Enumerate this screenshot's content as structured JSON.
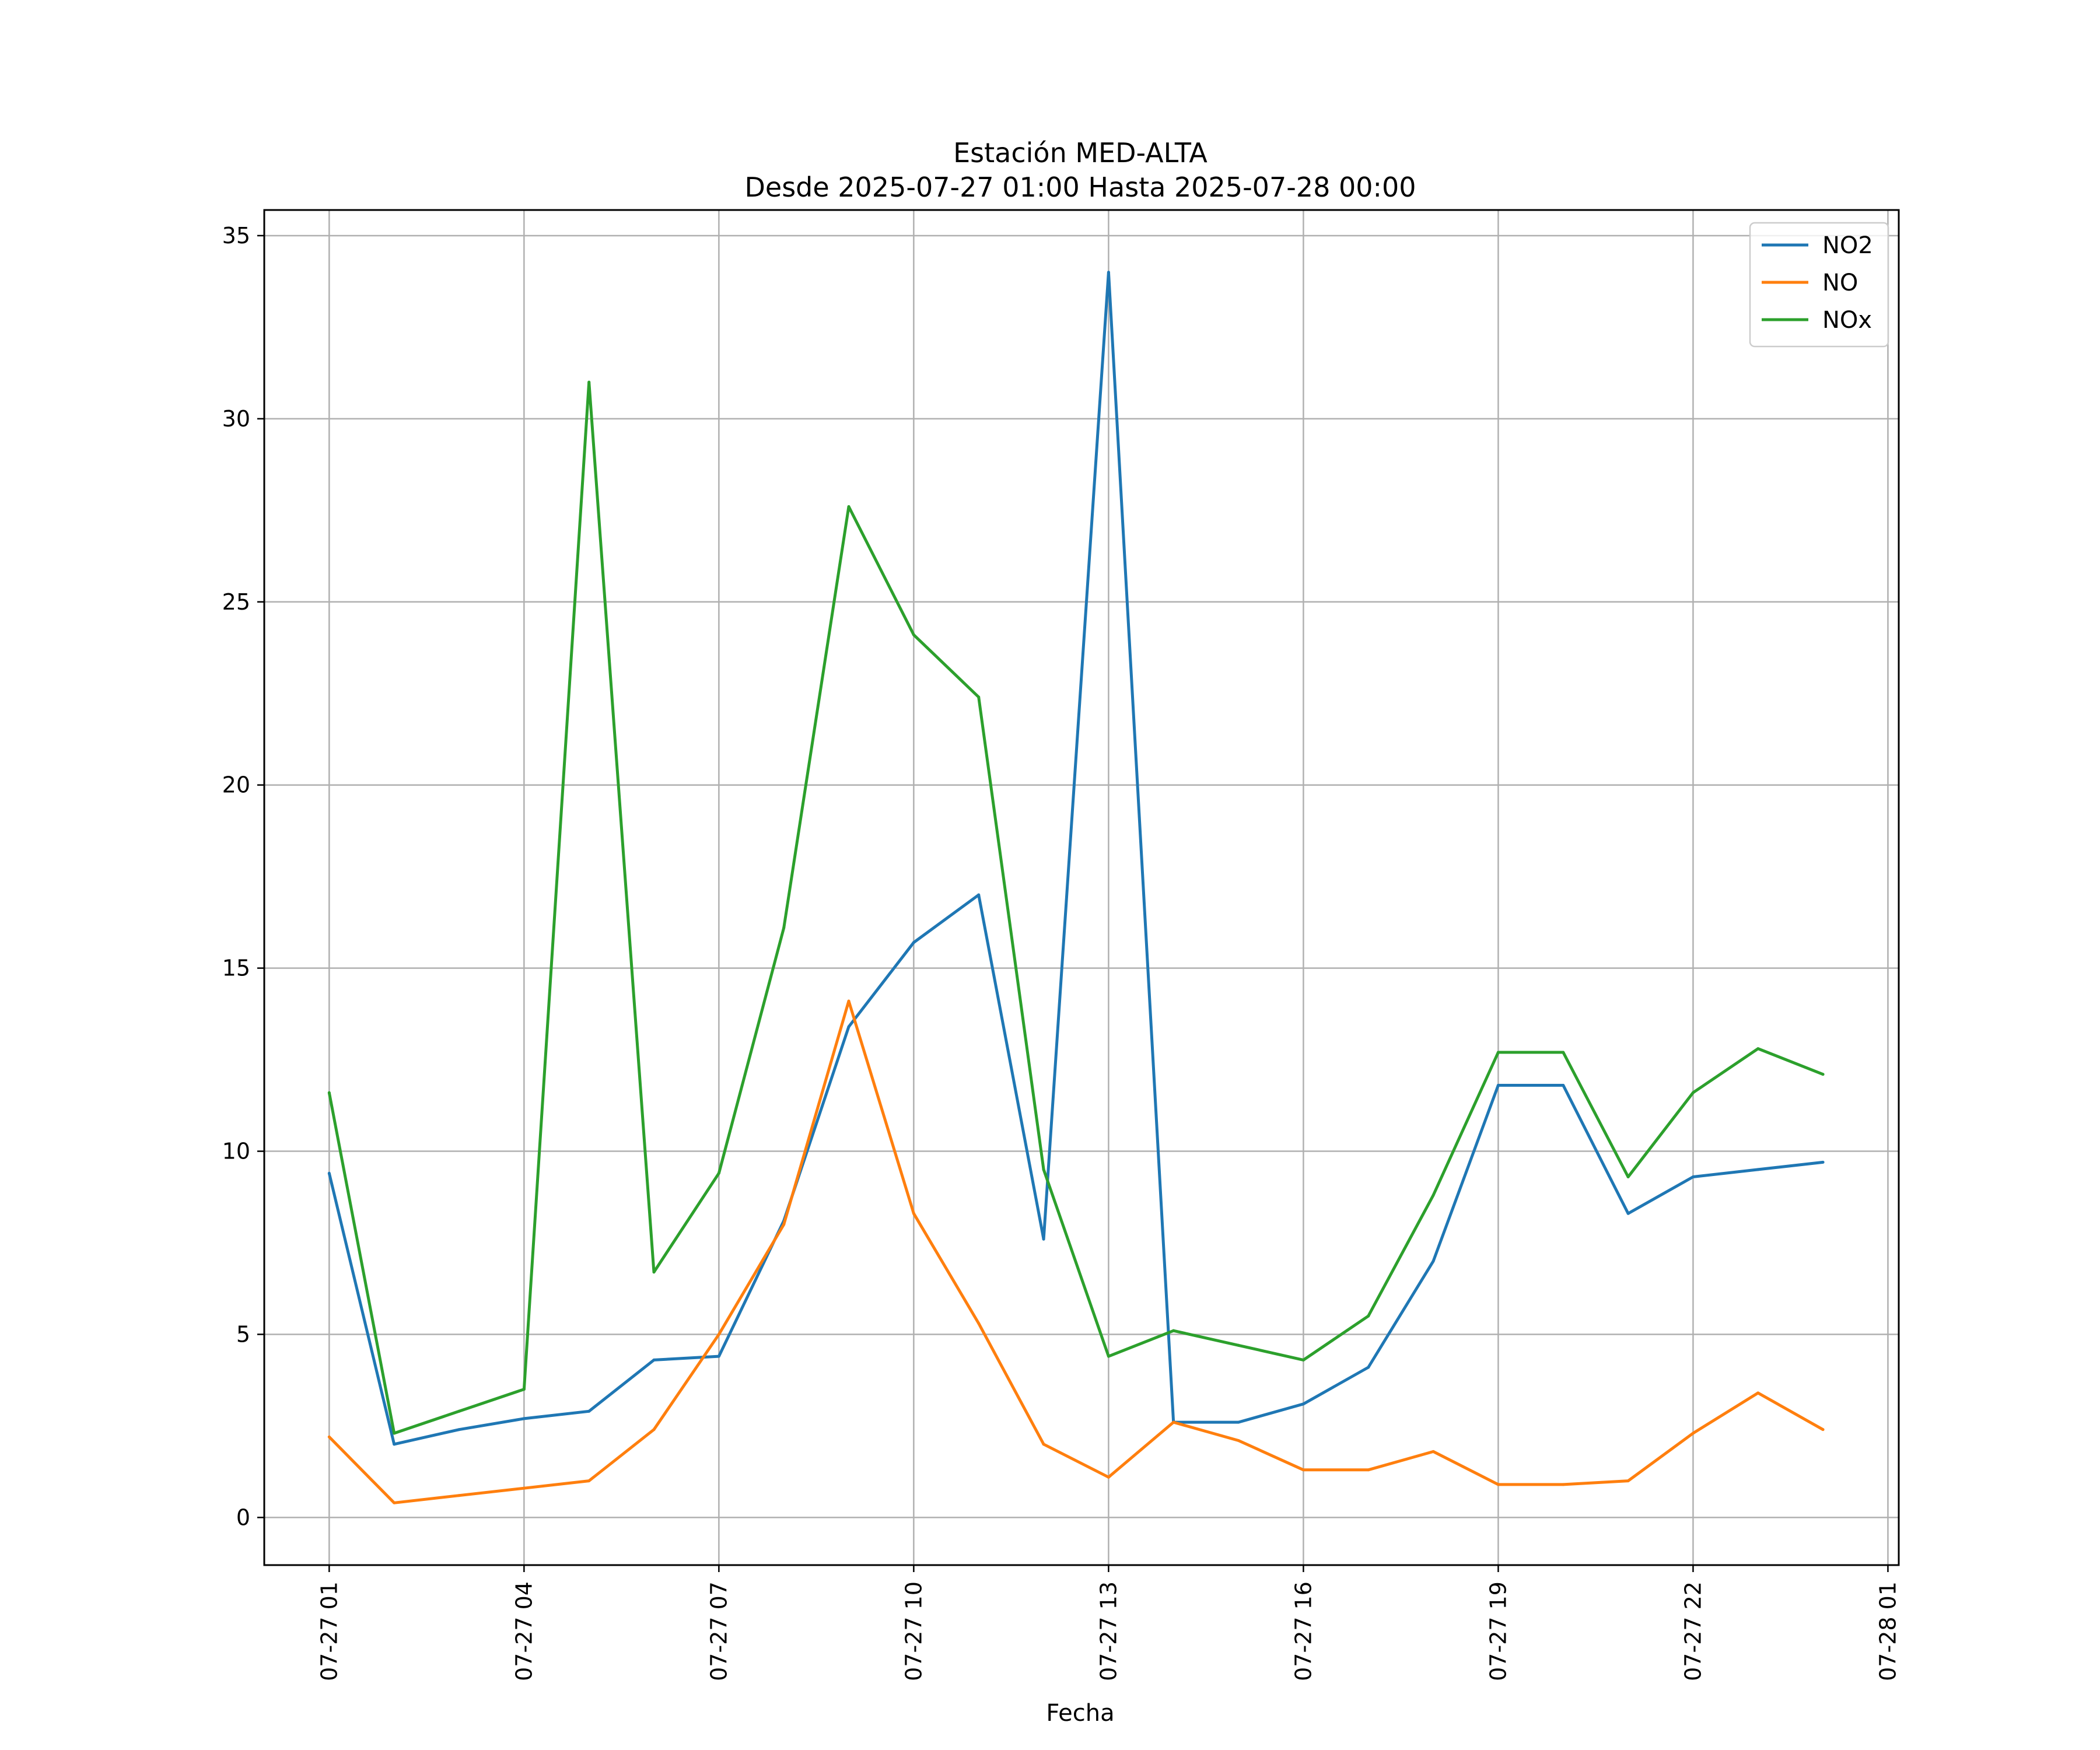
{
  "chart_data": {
    "type": "line",
    "title": "Estación MED-ALTA",
    "subtitle": "Desde 2025-07-27 01:00 Hasta 2025-07-28 00:00",
    "xlabel": "Fecha",
    "ylabel": "",
    "x": [
      "2025-07-27 01:00",
      "2025-07-27 02:00",
      "2025-07-27 03:00",
      "2025-07-27 04:00",
      "2025-07-27 05:00",
      "2025-07-27 06:00",
      "2025-07-27 07:00",
      "2025-07-27 08:00",
      "2025-07-27 09:00",
      "2025-07-27 10:00",
      "2025-07-27 11:00",
      "2025-07-27 12:00",
      "2025-07-27 13:00",
      "2025-07-27 14:00",
      "2025-07-27 15:00",
      "2025-07-27 16:00",
      "2025-07-27 17:00",
      "2025-07-27 18:00",
      "2025-07-27 19:00",
      "2025-07-27 20:00",
      "2025-07-27 21:00",
      "2025-07-27 22:00",
      "2025-07-27 23:00",
      "2025-07-28 00:00"
    ],
    "x_ticks": [
      "07-27 01",
      "07-27 04",
      "07-27 07",
      "07-27 10",
      "07-27 13",
      "07-27 16",
      "07-27 19",
      "07-27 22",
      "07-28 01"
    ],
    "xlim": [
      "2025-07-27 00:00",
      "2025-07-28 01:10"
    ],
    "y_ticks": [
      0,
      5,
      10,
      15,
      20,
      25,
      30,
      35
    ],
    "ylim": [
      -1.3,
      35.7
    ],
    "grid": true,
    "legend_position": "top-right",
    "series": [
      {
        "name": "NO2",
        "color": "#1f77b4",
        "values": [
          9.4,
          2.0,
          2.4,
          2.7,
          2.9,
          4.3,
          4.4,
          8.1,
          13.4,
          15.7,
          17.0,
          7.6,
          34.0,
          2.6,
          2.6,
          3.1,
          4.1,
          7.0,
          11.8,
          11.8,
          8.3,
          9.3,
          9.5,
          9.7
        ]
      },
      {
        "name": "NO",
        "color": "#ff7f0e",
        "values": [
          2.2,
          0.4,
          0.6,
          0.8,
          1.0,
          2.4,
          5.0,
          8.0,
          14.1,
          8.3,
          5.3,
          2.0,
          1.1,
          2.6,
          2.1,
          1.3,
          1.3,
          1.8,
          0.9,
          0.9,
          1.0,
          2.3,
          3.4,
          2.4
        ]
      },
      {
        "name": "NOx",
        "color": "#2ca02c",
        "values": [
          11.6,
          2.3,
          2.9,
          3.5,
          31.0,
          6.7,
          9.4,
          16.1,
          27.6,
          24.1,
          22.4,
          9.5,
          4.4,
          5.1,
          4.7,
          4.3,
          5.5,
          8.8,
          12.7,
          12.7,
          9.3,
          11.6,
          12.8,
          12.1
        ]
      }
    ]
  }
}
